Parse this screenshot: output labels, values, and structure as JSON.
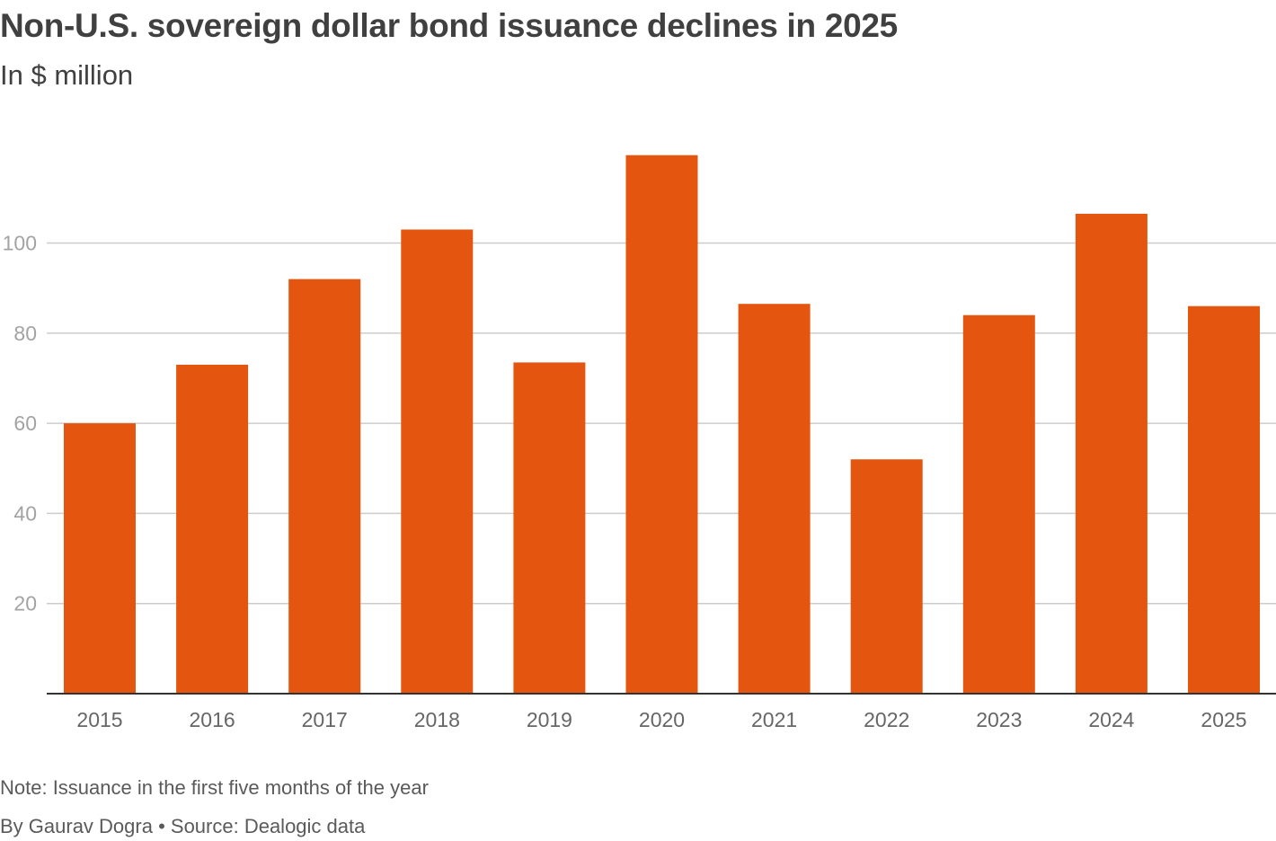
{
  "header": {
    "title": "Non-U.S. sovereign dollar bond issuance declines in 2025",
    "subtitle": "In $ million"
  },
  "footer": {
    "note": "Note: Issuance in the first five months of the year",
    "byline": "By Gaurav Dogra • Source: Dealogic data"
  },
  "colors": {
    "bar": "#e4560f",
    "grid": "#cccccc",
    "axis": "#333333"
  },
  "chart_data": {
    "type": "bar",
    "title": "Non-U.S. sovereign dollar bond issuance declines in 2025",
    "subtitle": "In $ million",
    "xlabel": "",
    "ylabel": "",
    "categories": [
      "2015",
      "2016",
      "2017",
      "2018",
      "2019",
      "2020",
      "2021",
      "2022",
      "2023",
      "2024",
      "2025"
    ],
    "values": [
      60,
      73,
      92,
      103,
      73.5,
      119.5,
      86.5,
      52,
      84,
      106.5,
      86
    ],
    "ylim": [
      0,
      120
    ],
    "yticks": [
      "20",
      "40",
      "60",
      "80",
      "100"
    ],
    "grid": true,
    "legend": "none"
  }
}
